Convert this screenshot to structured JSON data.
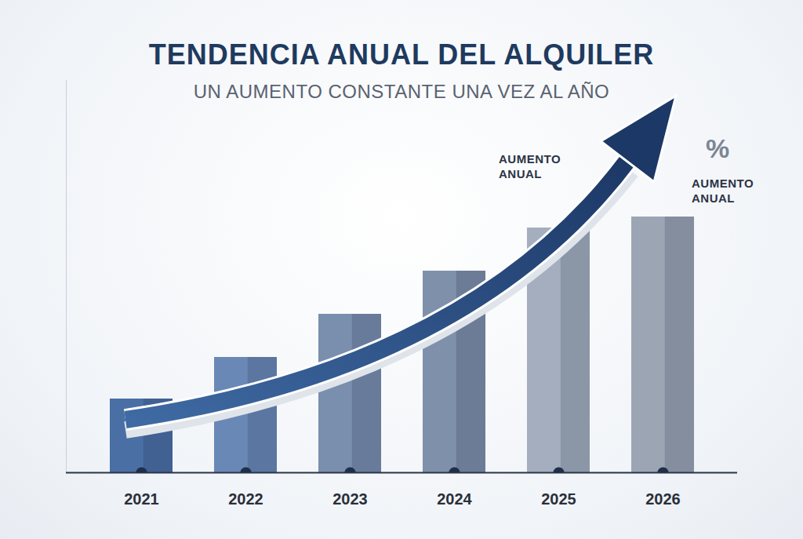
{
  "chart_data": {
    "type": "bar",
    "title": "TENDENCIA ANUAL DEL ALQUILER",
    "subtitle": "UN AUMENTO CONSTANTE UNA VEZ AL AÑO",
    "annotations": [
      "AUMENTO ANUAL",
      "AUMENTO ANUAL",
      "%"
    ],
    "categories": [
      "2021",
      "2022",
      "2023",
      "2024",
      "2025",
      "2026"
    ],
    "values": [
      94,
      147,
      202,
      257,
      312,
      326
    ],
    "colors": [
      "#4a6fa5",
      "#6a88b6",
      "#7a8eae",
      "#7f90aa",
      "#a4aebe",
      "#9ba5b4"
    ],
    "ylim": [
      0,
      500
    ],
    "grid": false,
    "tick_labels": "x"
  }
}
